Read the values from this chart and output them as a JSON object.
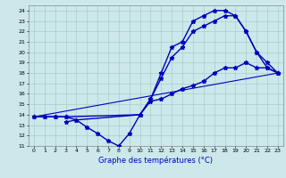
{
  "xlabel": "Graphe des températures (°C)",
  "xlim": [
    -0.5,
    23.5
  ],
  "ylim": [
    11,
    24.5
  ],
  "yticks": [
    11,
    12,
    13,
    14,
    15,
    16,
    17,
    18,
    19,
    20,
    21,
    22,
    23,
    24
  ],
  "xticks": [
    0,
    1,
    2,
    3,
    4,
    5,
    6,
    7,
    8,
    9,
    10,
    11,
    12,
    13,
    14,
    15,
    16,
    17,
    18,
    19,
    20,
    21,
    22,
    23
  ],
  "bg_color": "#cce8ea",
  "grid_color": "#aacccc",
  "line_color": "#0000bb",
  "series": [
    {
      "name": "line1_top",
      "x": [
        0,
        1,
        2,
        3,
        4,
        10,
        11,
        12,
        13,
        14,
        15,
        16,
        17,
        18,
        19,
        20,
        21,
        22,
        23
      ],
      "y": [
        13.8,
        13.8,
        13.8,
        13.8,
        13.5,
        14.0,
        15.5,
        18.0,
        20.5,
        21.0,
        23.0,
        23.5,
        24.0,
        24.0,
        23.5,
        22.0,
        20.0,
        18.5,
        18.0
      ],
      "marker": true,
      "linewidth": 1.0
    },
    {
      "name": "line2_mid",
      "x": [
        0,
        1,
        2,
        3,
        10,
        11,
        12,
        13,
        14,
        15,
        16,
        17,
        18,
        19,
        20,
        21,
        22,
        23
      ],
      "y": [
        13.8,
        13.8,
        13.8,
        13.8,
        14.0,
        15.5,
        17.5,
        19.5,
        20.5,
        22.0,
        22.5,
        23.0,
        23.5,
        23.5,
        22.0,
        20.0,
        19.0,
        18.0
      ],
      "marker": true,
      "linewidth": 1.0
    },
    {
      "name": "line3_flat",
      "x": [
        0,
        23
      ],
      "y": [
        13.8,
        18.0
      ],
      "marker": false,
      "linewidth": 0.8
    },
    {
      "name": "line4_v",
      "x": [
        3,
        4,
        5,
        6,
        7,
        8,
        9,
        10,
        11,
        12,
        13,
        14,
        15,
        16,
        17,
        18,
        19,
        20,
        21,
        22,
        23
      ],
      "y": [
        13.3,
        13.5,
        12.8,
        12.2,
        11.5,
        11.0,
        12.2,
        14.0,
        15.3,
        15.5,
        16.0,
        16.5,
        16.8,
        17.2,
        18.0,
        18.5,
        18.5,
        19.0,
        18.5,
        18.5,
        18.0
      ],
      "marker": true,
      "linewidth": 1.0
    }
  ]
}
